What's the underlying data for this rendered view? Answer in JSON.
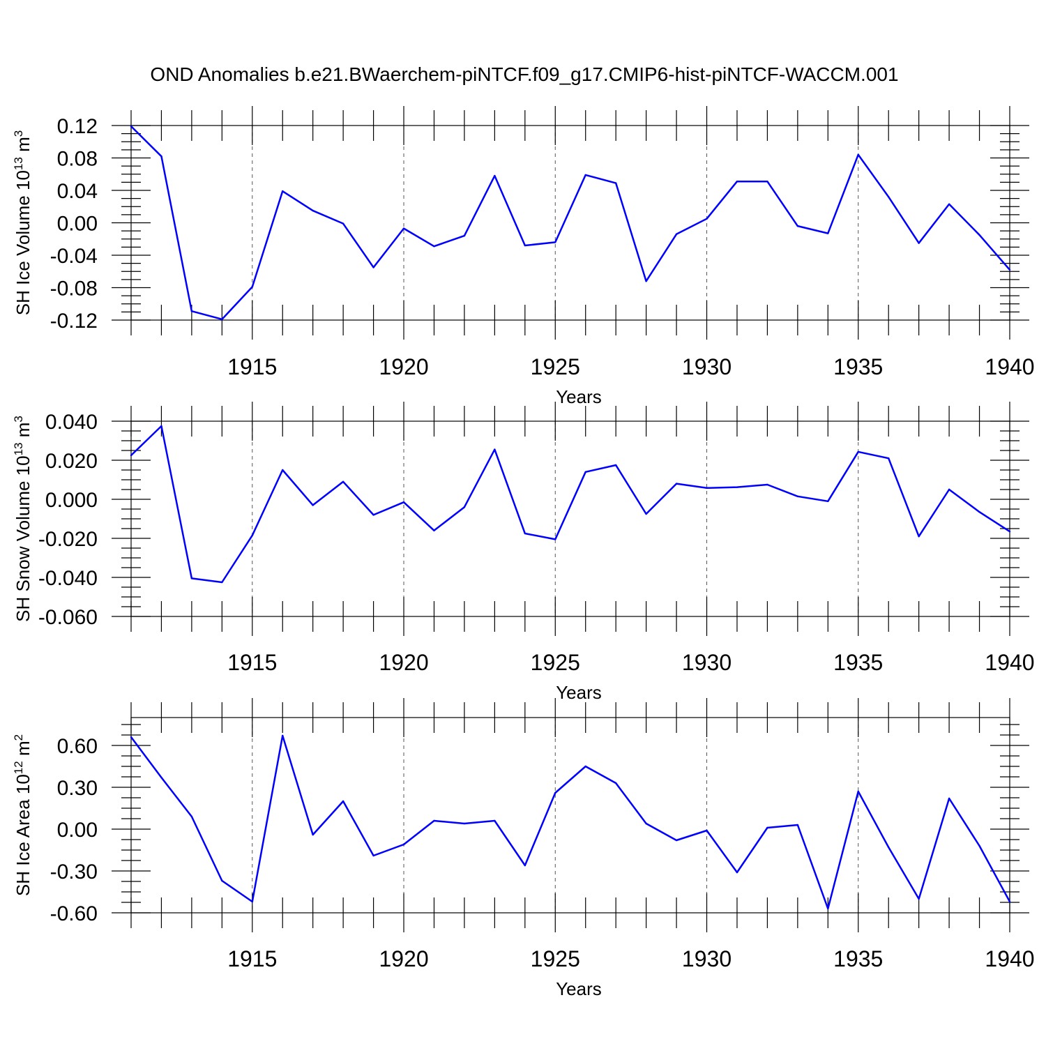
{
  "title": "OND Anomalies b.e21.BWaerchem-piNTCF.f09_g17.CMIP6-hist-piNTCF-WACCM.001",
  "colors": {
    "series": "#0000ff",
    "axis": "#000000",
    "grid": "#555555"
  },
  "chart_data": [
    {
      "type": "line",
      "ylabel": "SH Ice Volume 10",
      "ylabel_exp": "13",
      "ylabel_unit": " m",
      "ylabel_unit_exp": "3",
      "xlabel": "Years",
      "xlim": [
        1911,
        1940
      ],
      "ylim": [
        -0.12,
        0.12
      ],
      "y_ticks": [
        0.12,
        0.08,
        0.04,
        0.0,
        -0.04,
        -0.08,
        -0.12
      ],
      "y_tick_labels": [
        "0.12",
        "0.08",
        "0.04",
        "0.00",
        "-0.04",
        "-0.08",
        "-0.12"
      ],
      "x_ticks": [
        1915,
        1920,
        1925,
        1930,
        1935,
        1940
      ],
      "x_tick_labels": [
        "1915",
        "1920",
        "1925",
        "1930",
        "1935",
        "1940"
      ],
      "x": [
        1911,
        1912,
        1913,
        1914,
        1915,
        1916,
        1917,
        1918,
        1919,
        1920,
        1921,
        1922,
        1923,
        1924,
        1925,
        1926,
        1927,
        1928,
        1929,
        1930,
        1931,
        1932,
        1933,
        1934,
        1935,
        1936,
        1937,
        1938,
        1939,
        1940
      ],
      "values": [
        0.119,
        0.082,
        -0.109,
        -0.119,
        -0.079,
        0.039,
        0.015,
        -0.001,
        -0.055,
        -0.007,
        -0.029,
        -0.016,
        0.058,
        -0.028,
        -0.024,
        0.059,
        0.049,
        -0.072,
        -0.014,
        0.005,
        0.051,
        0.051,
        -0.004,
        -0.013,
        0.084,
        0.032,
        -0.025,
        0.023,
        -0.015,
        -0.058
      ]
    },
    {
      "type": "line",
      "ylabel": "SH Snow Volume 10",
      "ylabel_exp": "13",
      "ylabel_unit": " m",
      "ylabel_unit_exp": "3",
      "xlabel": "Years",
      "xlim": [
        1911,
        1940
      ],
      "ylim": [
        -0.06,
        0.04
      ],
      "y_ticks": [
        0.04,
        0.02,
        0.0,
        -0.02,
        -0.04,
        -0.06
      ],
      "y_tick_labels": [
        "0.040",
        "0.020",
        "0.000",
        "-0.020",
        "-0.040",
        "-0.060"
      ],
      "x_ticks": [
        1915,
        1920,
        1925,
        1930,
        1935,
        1940
      ],
      "x_tick_labels": [
        "1915",
        "1920",
        "1925",
        "1930",
        "1935",
        "1940"
      ],
      "x": [
        1911,
        1912,
        1913,
        1914,
        1915,
        1916,
        1917,
        1918,
        1919,
        1920,
        1921,
        1922,
        1923,
        1924,
        1925,
        1926,
        1927,
        1928,
        1929,
        1930,
        1931,
        1932,
        1933,
        1934,
        1935,
        1936,
        1937,
        1938,
        1939,
        1940
      ],
      "values": [
        0.0225,
        0.0375,
        -0.0405,
        -0.0425,
        -0.0185,
        0.015,
        -0.003,
        0.009,
        -0.008,
        -0.0015,
        -0.016,
        -0.004,
        0.0255,
        -0.0175,
        -0.0205,
        0.014,
        0.0175,
        -0.0075,
        0.008,
        0.0058,
        0.0062,
        0.0075,
        0.0015,
        -0.001,
        0.0243,
        0.021,
        -0.019,
        0.005,
        -0.0065,
        -0.0165
      ]
    },
    {
      "type": "line",
      "ylabel": "SH Ice Area 10",
      "ylabel_exp": "12",
      "ylabel_unit": " m",
      "ylabel_unit_exp": "2",
      "xlabel": "Years",
      "xlim": [
        1911,
        1940
      ],
      "ylim": [
        -0.6,
        0.8
      ],
      "y_ticks": [
        0.6,
        0.3,
        0.0,
        -0.3,
        -0.6
      ],
      "y_tick_labels": [
        "0.60",
        "0.30",
        "0.00",
        "-0.30",
        "-0.60"
      ],
      "x_ticks": [
        1915,
        1920,
        1925,
        1930,
        1935,
        1940
      ],
      "x_tick_labels": [
        "1915",
        "1920",
        "1925",
        "1930",
        "1935",
        "1940"
      ],
      "x": [
        1911,
        1912,
        1913,
        1914,
        1915,
        1916,
        1917,
        1918,
        1919,
        1920,
        1921,
        1922,
        1923,
        1924,
        1925,
        1926,
        1927,
        1928,
        1929,
        1930,
        1931,
        1932,
        1933,
        1934,
        1935,
        1936,
        1937,
        1938,
        1939,
        1940
      ],
      "values": [
        0.66,
        0.37,
        0.09,
        -0.37,
        -0.52,
        0.67,
        -0.04,
        0.2,
        -0.19,
        -0.11,
        0.06,
        0.04,
        0.06,
        -0.26,
        0.26,
        0.45,
        0.33,
        0.04,
        -0.08,
        -0.01,
        -0.31,
        0.01,
        0.03,
        -0.57,
        0.27,
        -0.13,
        -0.5,
        0.22,
        -0.12,
        -0.52
      ]
    }
  ]
}
